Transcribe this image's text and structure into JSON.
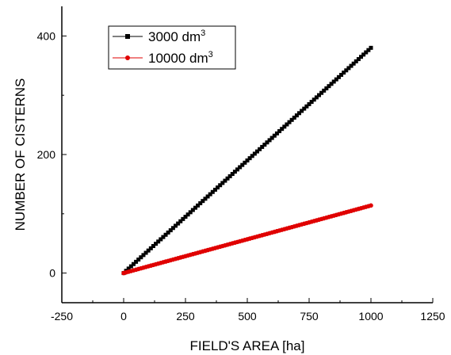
{
  "chart_data": {
    "type": "line",
    "title": "",
    "xlabel": "FIELD'S AREA  [ha]",
    "ylabel": "NUMBER OF CISTERNS",
    "xlim": [
      -250,
      1250
    ],
    "ylim": [
      -50,
      450
    ],
    "xticks": [
      -250,
      0,
      250,
      500,
      750,
      1000,
      1250
    ],
    "yticks": [
      0,
      200,
      400
    ],
    "grid": false,
    "legend_position": "top-left",
    "series": [
      {
        "name": "3000 dm³",
        "label_base": "3000 dm",
        "label_sup": "3",
        "color": "#000000",
        "marker": "square",
        "x_start": 0,
        "x_end": 1000,
        "x_step": 10,
        "y_start": 0,
        "y_end": 380
      },
      {
        "name": "10000 dm³",
        "label_base": "10000 dm",
        "label_sup": "3",
        "color": "#e00000",
        "marker": "circle",
        "x_start": 0,
        "x_end": 1000,
        "x_step": 10,
        "y_start": 0,
        "y_end": 114
      }
    ]
  }
}
